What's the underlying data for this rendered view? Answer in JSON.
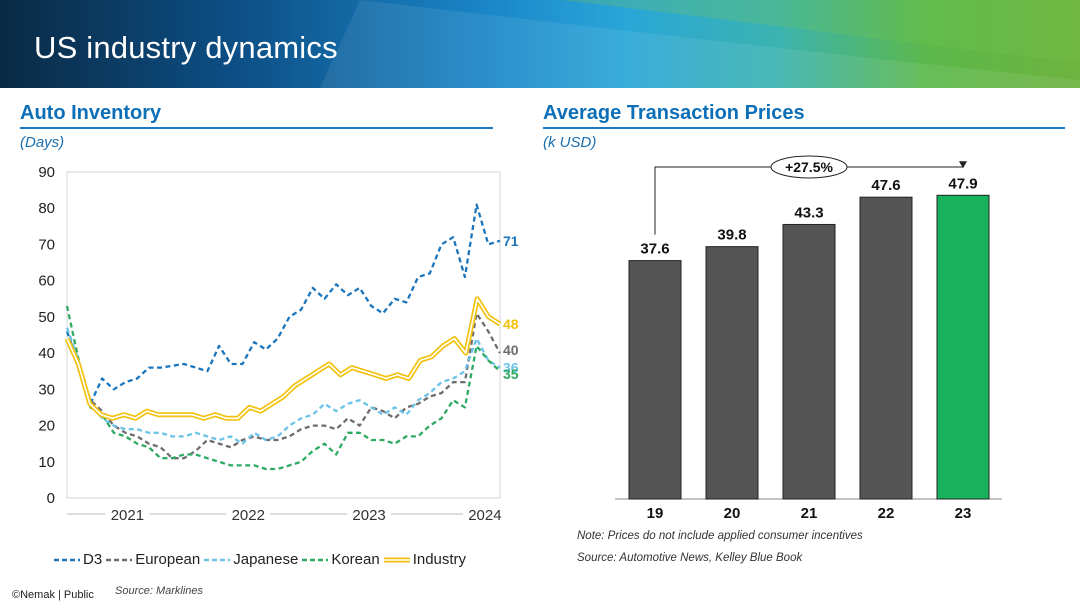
{
  "header": {
    "title": "US industry dynamics"
  },
  "left": {
    "title": "Auto Inventory",
    "unit": "(Days)",
    "source": "Source: Marklines"
  },
  "right": {
    "title": "Average Transaction Prices",
    "unit": "(k USD)",
    "note": "Note: Prices do not include applied consumer incentives",
    "source": "Source: Automotive News, Kelley Blue Book"
  },
  "footer": {
    "text": "©Nemak | Public"
  },
  "colors": {
    "D3": "#1a75bc",
    "European": "#6d6d6d",
    "Japanese": "#6cc3ea",
    "Korean": "#2faa62",
    "Industry": "#f2c20f",
    "bar": "#555555",
    "bar_highlight": "#17b25b"
  },
  "chart_data": [
    {
      "type": "line",
      "title": "Auto Inventory",
      "ylabel": "(Days)",
      "ylim": [
        0,
        90
      ],
      "yticks": [
        "0",
        "10",
        "20",
        "30",
        "40",
        "50",
        "60",
        "70",
        "80",
        "90"
      ],
      "x_range": [
        0,
        43
      ],
      "x_labels": [
        {
          "label": "2021",
          "x": 6
        },
        {
          "label": "2022",
          "x": 18
        },
        {
          "label": "2023",
          "x": 30
        },
        {
          "label": "2024",
          "x": 41.5
        }
      ],
      "series": [
        {
          "name": "D3",
          "style": "dashed",
          "values": [
            46,
            37,
            26,
            33,
            30,
            32,
            33,
            36,
            36,
            36.5,
            37,
            36,
            35,
            42,
            37,
            37,
            43,
            41,
            44,
            50,
            52,
            58,
            55,
            59,
            56,
            58,
            53,
            51,
            55,
            54,
            61,
            62,
            70,
            72,
            61,
            81,
            70,
            71
          ],
          "end_label": "71"
        },
        {
          "name": "European",
          "style": "dashed",
          "values": [
            44,
            37,
            27,
            24,
            20,
            18,
            17,
            15,
            14,
            11,
            11,
            13,
            16,
            15,
            14,
            16,
            17,
            16,
            16,
            17,
            19,
            20,
            20,
            19,
            22,
            20,
            25,
            24,
            22,
            25,
            26,
            28,
            29,
            32,
            32,
            51,
            46,
            40
          ],
          "end_label": "40"
        },
        {
          "name": "Japanese",
          "style": "dashed",
          "values": [
            47,
            38,
            26,
            22,
            20,
            19,
            19,
            18,
            18,
            17,
            17,
            18,
            17,
            16,
            17,
            15,
            18,
            16,
            17,
            20,
            22,
            23,
            26,
            24,
            26,
            27,
            25,
            23,
            25,
            23,
            27,
            29,
            32,
            33,
            35,
            44,
            38,
            36
          ],
          "end_label": "36"
        },
        {
          "name": "Korean",
          "style": "dashed",
          "values": [
            53,
            38,
            25,
            23,
            18,
            17,
            15,
            14,
            11,
            11,
            12,
            12,
            11,
            10,
            9,
            9,
            9,
            8,
            8,
            9,
            10,
            13,
            15,
            12,
            18,
            18,
            16,
            16,
            15,
            17,
            17,
            20,
            22,
            27,
            25,
            42,
            38,
            35
          ],
          "end_label": "35"
        },
        {
          "name": "Industry",
          "style": "double",
          "values": [
            44,
            37,
            26,
            23,
            22,
            23,
            22,
            24,
            23,
            23,
            23,
            23,
            22,
            23,
            22,
            22,
            25,
            24,
            26,
            28,
            31,
            33,
            35,
            37,
            34,
            36,
            35,
            34,
            33,
            34,
            33,
            38,
            39,
            42,
            44,
            40,
            55,
            50,
            48
          ],
          "end_label": "48"
        }
      ],
      "legend": [
        "D3",
        "European",
        "Japanese",
        "Korean",
        "Industry"
      ]
    },
    {
      "type": "bar",
      "title": "Average Transaction Prices",
      "ylabel": "(k USD)",
      "ylim": [
        0,
        55
      ],
      "categories": [
        "19",
        "20",
        "21",
        "22",
        "23"
      ],
      "values": [
        37.6,
        39.8,
        43.3,
        47.6,
        47.9
      ],
      "value_labels": [
        "37.6",
        "39.8",
        "43.3",
        "47.6",
        "47.9"
      ],
      "highlight_index": 4,
      "annotation": "+27.5%"
    }
  ]
}
